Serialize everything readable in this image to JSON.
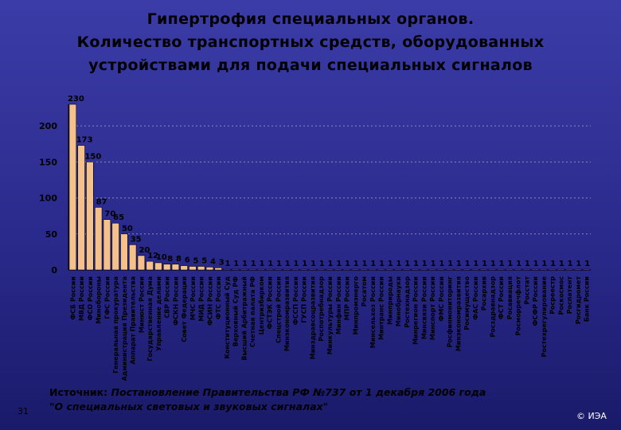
{
  "title_lines": [
    "Гипертрофия специальных органов.",
    "Количество транспортных средств, оборудованных",
    "устройствами для подачи специальных сигналов"
  ],
  "source": {
    "label": "Источник:",
    "line1": "Постановление Правительства РФ №737 от 1 декабря 2006 года",
    "line2": "\"О специальных световых и звуковых сигналах\""
  },
  "slide_number": "31",
  "copyright": "© ИЭА",
  "colors": {
    "bar": "#f4c08c",
    "bar_stroke": "#000000",
    "grid": "#8888bb",
    "axis": "#000000"
  },
  "chart_data": {
    "type": "bar",
    "ylim": [
      0,
      230
    ],
    "yticks": [
      0,
      50,
      100,
      150,
      200
    ],
    "grid": true,
    "categories": [
      "ФСБ России",
      "МВД России",
      "ФСО России",
      "Минобороны",
      "ГФС России",
      "Генеральная прокуратура",
      "Администрация Президента",
      "Аппарат Правительства",
      "Минюст России",
      "Государственная Дума",
      "Управление делами",
      "СВР России",
      "ФСКН России",
      "Совет Федерации",
      "МЧС России",
      "МИД России",
      "ФСИН России",
      "ФТС России",
      "Конституционный Суд",
      "Верховный Суд РФ",
      "Высший Арбитражный",
      "Счетная палата РФ",
      "Центризбирком",
      "ФСТЭК России",
      "Спецстрой России",
      "Минэкономразвития",
      "ФССП России",
      "ГУСП России",
      "Минздравсоцразвития",
      "Роспотребнадзор",
      "Минкультуры России",
      "Минфин России",
      "МПР России",
      "Минпромэнерго",
      "Росатом",
      "Минсельхоз России",
      "Минтранс России",
      "Минприроды",
      "Минобрнауки",
      "Ростехнадзор",
      "Минрегион России",
      "Минсвязи России",
      "Минспорт России",
      "ФМС России",
      "Росфинмониторинг",
      "Минэкономразвития",
      "Росимущество",
      "ФАС России",
      "Росархив",
      "Росздравнадзор",
      "ФСТ России",
      "Росавиация",
      "Росморречфлот",
      "Росстат",
      "ФСФР России",
      "Ростехрегулирование",
      "Росреестр",
      "Роскосмос",
      "Роспатент",
      "Росгидромет",
      "Банк России"
    ],
    "values": [
      230,
      173,
      150,
      87,
      70,
      65,
      50,
      35,
      20,
      12,
      10,
      8,
      8,
      6,
      5,
      5,
      4,
      3,
      1,
      1,
      1,
      1,
      1,
      1,
      1,
      1,
      1,
      1,
      1,
      1,
      1,
      1,
      1,
      1,
      1,
      1,
      1,
      1,
      1,
      1,
      1,
      1,
      1,
      1,
      1,
      1,
      1,
      1,
      1,
      1,
      1,
      1,
      1,
      1,
      1,
      1,
      1,
      1,
      1,
      1,
      1
    ],
    "value_labels": [
      "230",
      "173",
      "150",
      "87",
      "70",
      "65",
      "50",
      "35",
      "20",
      "12",
      "10",
      "8",
      "8",
      "6",
      "5",
      "5",
      "4",
      "3",
      "1",
      "1",
      "1",
      "1",
      "1",
      "1",
      "1",
      "1",
      "1",
      "1",
      "1",
      "1",
      "1",
      "1",
      "1",
      "1",
      "1",
      "1",
      "1",
      "1",
      "1",
      "1",
      "1",
      "1",
      "1",
      "1",
      "1",
      "1",
      "1",
      "1",
      "1",
      "1",
      "1",
      "1",
      "1",
      "1",
      "1",
      "1",
      "1",
      "1",
      "1",
      "1",
      "1"
    ]
  }
}
